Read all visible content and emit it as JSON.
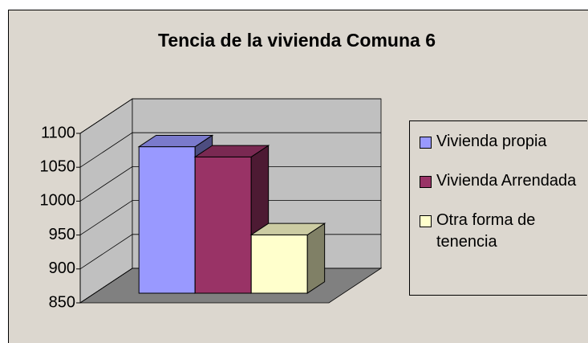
{
  "chart_data": {
    "type": "bar3d",
    "title": "Tencia de la vivienda Comuna 6",
    "series": [
      {
        "name": "Vivienda propia",
        "color": "#9999ff",
        "values": [
          1066
        ]
      },
      {
        "name": "Vivienda Arrendada",
        "color": "#993366",
        "values": [
          1051
        ]
      },
      {
        "name": "Otra forma de tenencia",
        "color": "#ffffcc",
        "values": [
          936
        ]
      }
    ],
    "ylim": [
      850,
      1100
    ],
    "yticks": [
      850,
      900,
      950,
      1000,
      1050,
      1100
    ],
    "grid": true,
    "legend": "right"
  }
}
